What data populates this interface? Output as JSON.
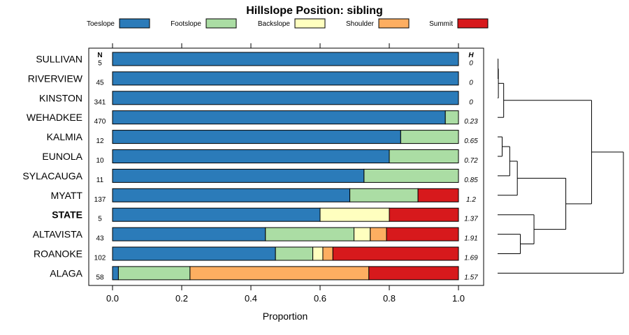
{
  "chart_data": {
    "type": "bar",
    "orientation": "horizontal",
    "stacked": true,
    "title": "Hillslope Position: sibling",
    "xlabel": "Proportion",
    "xlim": [
      0,
      1
    ],
    "x_ticks": [
      "0.0",
      "0.2",
      "0.4",
      "0.6",
      "0.8",
      "1.0"
    ],
    "n_header": "N",
    "h_header": "H",
    "series": [
      {
        "name": "Toeslope",
        "color": "#2b7bb9"
      },
      {
        "name": "Footslope",
        "color": "#abdda4"
      },
      {
        "name": "Backslope",
        "color": "#ffffbf"
      },
      {
        "name": "Shoulder",
        "color": "#fdae61"
      },
      {
        "name": "Summit",
        "color": "#d7191c"
      }
    ],
    "categories": [
      {
        "label": "SULLIVAN",
        "n": "5",
        "h": "0",
        "bold": false,
        "values": [
          1.0,
          0,
          0,
          0,
          0
        ]
      },
      {
        "label": "RIVERVIEW",
        "n": "45",
        "h": "0",
        "bold": false,
        "values": [
          1.0,
          0,
          0,
          0,
          0
        ]
      },
      {
        "label": "KINSTON",
        "n": "341",
        "h": "0",
        "bold": false,
        "values": [
          1.0,
          0,
          0,
          0,
          0
        ]
      },
      {
        "label": "WEHADKEE",
        "n": "470",
        "h": "0.23",
        "bold": false,
        "values": [
          0.962,
          0.038,
          0,
          0,
          0
        ]
      },
      {
        "label": "KALMIA",
        "n": "12",
        "h": "0.65",
        "bold": false,
        "values": [
          0.833,
          0.167,
          0,
          0,
          0
        ]
      },
      {
        "label": "EUNOLA",
        "n": "10",
        "h": "0.72",
        "bold": false,
        "values": [
          0.8,
          0.2,
          0,
          0,
          0
        ]
      },
      {
        "label": "SYLACAUGA",
        "n": "11",
        "h": "0.85",
        "bold": false,
        "values": [
          0.727,
          0.273,
          0,
          0,
          0
        ]
      },
      {
        "label": "MYATT",
        "n": "137",
        "h": "1.2",
        "bold": false,
        "values": [
          0.686,
          0.197,
          0,
          0,
          0.117
        ]
      },
      {
        "label": "STATE",
        "n": "5",
        "h": "1.37",
        "bold": true,
        "values": [
          0.6,
          0,
          0.2,
          0,
          0.2
        ]
      },
      {
        "label": "ALTAVISTA",
        "n": "43",
        "h": "1.91",
        "bold": false,
        "values": [
          0.442,
          0.256,
          0.047,
          0.047,
          0.208
        ]
      },
      {
        "label": "ROANOKE",
        "n": "102",
        "h": "1.69",
        "bold": false,
        "values": [
          0.471,
          0.108,
          0.029,
          0.029,
          0.363
        ]
      },
      {
        "label": "ALAGA",
        "n": "58",
        "h": "1.57",
        "bold": false,
        "values": [
          0.017,
          0.207,
          0,
          0.517,
          0.259
        ]
      }
    ],
    "dendrogram": {
      "type": "hierarchical-clustering",
      "leaf_order": [
        "SULLIVAN",
        "RIVERVIEW",
        "KINSTON",
        "WEHADKEE",
        "KALMIA",
        "EUNOLA",
        "SYLACAUGA",
        "MYATT",
        "STATE",
        "ALTAVISTA",
        "ROANOKE",
        "ALAGA"
      ],
      "merges": [
        {
          "left": "L0",
          "right": "L1",
          "height": 0.003
        },
        {
          "left": "M1",
          "right": "L2",
          "height": 0.005
        },
        {
          "left": "M2",
          "right": "L3",
          "height": 0.04
        },
        {
          "left": "L4",
          "right": "L5",
          "height": 0.03
        },
        {
          "left": "M4",
          "right": "L6",
          "height": 0.08
        },
        {
          "left": "M5",
          "right": "L7",
          "height": 0.13
        },
        {
          "left": "L9",
          "right": "L10",
          "height": 0.15
        },
        {
          "left": "L8",
          "right": "M7",
          "height": 0.24
        },
        {
          "left": "M6",
          "right": "M8",
          "height": 0.45
        },
        {
          "left": "M3",
          "right": "M9",
          "height": 0.62
        },
        {
          "left": "M10",
          "right": "L11",
          "height": 0.83
        }
      ]
    }
  }
}
